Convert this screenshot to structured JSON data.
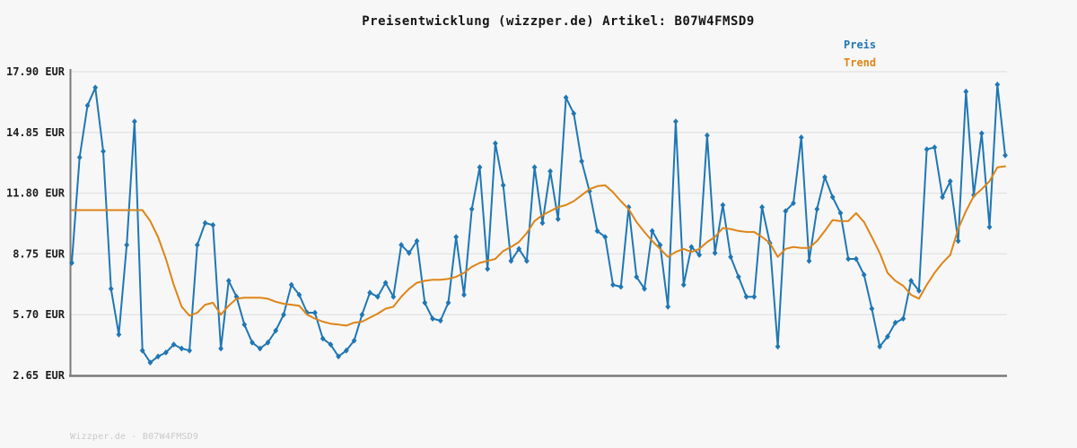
{
  "title": "Preisentwicklung (wizzper.de) Artikel: B07W4FMSD9",
  "legend": {
    "preis": "Preis",
    "trend": "Trend"
  },
  "footer": "Wizzper.de - B07W4FMSD9",
  "colors": {
    "preis": "#1f77b4",
    "trend": "#dd8517",
    "grid": "#e3e3e3",
    "axis": "#7a7a7a",
    "tick_text": "#1c1c1c",
    "background": "#f7f7f7"
  },
  "chart_data": {
    "type": "line",
    "title": "Preisentwicklung (wizzper.de) Artikel: B07W4FMSD9",
    "xlabel": "",
    "ylabel": "EUR",
    "x_axis": {
      "labels_visible": false
    },
    "ylim": [
      2.65,
      17.9
    ],
    "y_tick_values": [
      17.9,
      14.85,
      11.8,
      8.75,
      5.7,
      2.65
    ],
    "y_tick_labels": [
      "17.90 EUR",
      "14.85 EUR",
      "11.80 EUR",
      "8.75 EUR",
      "5.70 EUR",
      "2.65 EUR"
    ],
    "grid": true,
    "legend_position": "top-right",
    "series": [
      {
        "name": "Preis",
        "color": "#1f77b4",
        "markers": true,
        "values": [
          8.3,
          13.6,
          16.2,
          17.1,
          13.9,
          7.0,
          4.7,
          9.2,
          15.4,
          3.9,
          3.3,
          3.6,
          3.8,
          4.2,
          4.0,
          3.9,
          9.2,
          10.3,
          10.2,
          4.0,
          7.4,
          6.6,
          5.2,
          4.3,
          4.0,
          4.3,
          4.9,
          5.7,
          7.2,
          6.7,
          5.8,
          5.8,
          4.5,
          4.2,
          3.6,
          3.9,
          4.4,
          5.7,
          6.8,
          6.6,
          7.3,
          6.6,
          9.2,
          8.8,
          9.4,
          6.3,
          5.5,
          5.4,
          6.3,
          9.6,
          6.7,
          11.0,
          13.1,
          8.0,
          14.3,
          12.2,
          8.4,
          9.0,
          8.4,
          13.1,
          10.3,
          12.9,
          10.5,
          16.6,
          15.8,
          13.4,
          11.9,
          9.9,
          9.6,
          7.2,
          7.1,
          11.1,
          7.6,
          7.0,
          9.9,
          9.2,
          6.1,
          15.4,
          7.2,
          9.1,
          8.7,
          14.7,
          8.8,
          11.2,
          8.6,
          7.6,
          6.6,
          6.6,
          11.1,
          9.3,
          4.1,
          10.9,
          11.3,
          14.6,
          8.4,
          11.0,
          12.6,
          11.6,
          10.8,
          8.5,
          8.5,
          7.7,
          6.0,
          4.1,
          4.6,
          5.3,
          5.5,
          7.4,
          6.9,
          14.0,
          14.1,
          11.6,
          12.4,
          9.4,
          16.9,
          11.7,
          14.8,
          10.1,
          17.25,
          13.7
        ]
      },
      {
        "name": "Trend",
        "color": "#dd8517",
        "markers": false,
        "values": [
          10.95,
          10.95,
          10.95,
          10.95,
          10.95,
          10.95,
          10.95,
          10.95,
          10.95,
          10.95,
          10.4,
          9.6,
          8.5,
          7.2,
          6.1,
          5.65,
          5.8,
          6.2,
          6.3,
          5.7,
          6.15,
          6.5,
          6.55,
          6.55,
          6.55,
          6.5,
          6.35,
          6.25,
          6.2,
          6.15,
          5.7,
          5.5,
          5.35,
          5.25,
          5.2,
          5.15,
          5.3,
          5.35,
          5.55,
          5.75,
          6.0,
          6.1,
          6.6,
          7.0,
          7.3,
          7.4,
          7.45,
          7.45,
          7.5,
          7.6,
          7.8,
          8.1,
          8.3,
          8.4,
          8.5,
          8.9,
          9.1,
          9.35,
          9.8,
          10.4,
          10.7,
          10.9,
          11.1,
          11.2,
          11.4,
          11.7,
          12.0,
          12.15,
          12.2,
          11.85,
          11.4,
          11.0,
          10.35,
          9.85,
          9.4,
          9.0,
          8.6,
          8.85,
          9.0,
          8.85,
          9.0,
          9.35,
          9.6,
          10.05,
          10.0,
          9.9,
          9.85,
          9.85,
          9.6,
          9.3,
          8.6,
          9.0,
          9.1,
          9.05,
          9.05,
          9.4,
          9.9,
          10.45,
          10.4,
          10.4,
          10.8,
          10.35,
          9.6,
          8.8,
          7.8,
          7.4,
          7.15,
          6.7,
          6.5,
          7.2,
          7.8,
          8.3,
          8.7,
          10.0,
          10.9,
          11.65,
          12.0,
          12.4,
          13.1,
          13.15
        ]
      }
    ]
  }
}
